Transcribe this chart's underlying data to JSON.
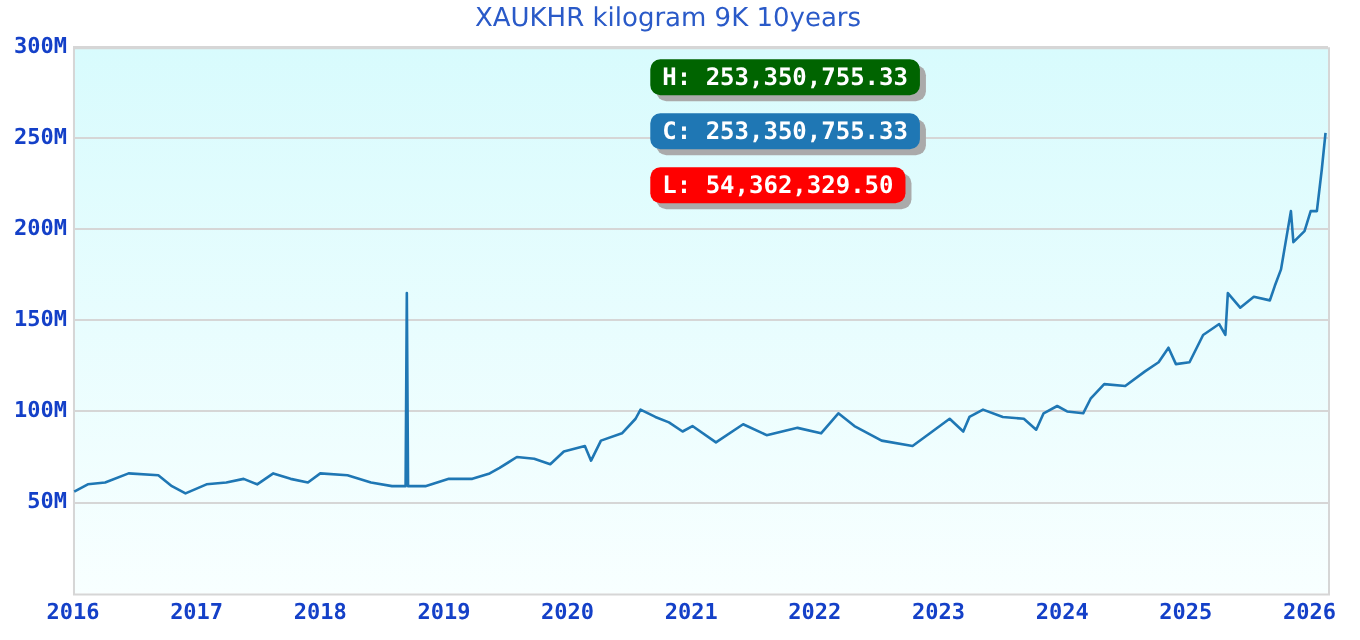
{
  "chart_data": {
    "type": "line",
    "title": "XAUKHR kilogram 9K 10years",
    "annotations": [
      "H: 253,350,755.33",
      "C: 253,350,755.33",
      "L: 54,362,329.50"
    ],
    "xlim": [
      2016,
      2026.15
    ],
    "xticks": [
      2016,
      2017,
      2018,
      2019,
      2020,
      2021,
      2022,
      2023,
      2024,
      2025,
      2026
    ],
    "ylim": [
      0,
      300
    ],
    "yticks": [
      {
        "value": 50,
        "label": "50M"
      },
      {
        "value": 100,
        "label": "100M"
      },
      {
        "value": 150,
        "label": "150M"
      },
      {
        "value": 200,
        "label": "200M"
      },
      {
        "value": 250,
        "label": "250M"
      },
      {
        "value": 300,
        "label": "300M"
      }
    ],
    "grid": "y",
    "legend": false,
    "marker": "none",
    "line_style": "solid",
    "series": [
      {
        "color": "#1f77b4",
        "x": [
          2016.01,
          2016.12,
          2016.26,
          2016.45,
          2016.69,
          2016.8,
          2016.91,
          2017.08,
          2017.24,
          2017.38,
          2017.49,
          2017.62,
          2017.76,
          2017.9,
          2018,
          2018.22,
          2018.41,
          2018.58,
          2018.69,
          2018.7,
          2018.71,
          2018.85,
          2019.04,
          2019.23,
          2019.37,
          2019.45,
          2019.59,
          2019.73,
          2019.86,
          2019.97,
          2020.14,
          2020.19,
          2020.27,
          2020.44,
          2020.55,
          2020.59,
          2020.71,
          2020.82,
          2020.93,
          2021.01,
          2021.2,
          2021.42,
          2021.61,
          2021.86,
          2022.05,
          2022.19,
          2022.32,
          2022.54,
          2022.79,
          2022.95,
          2023.09,
          2023.2,
          2023.25,
          2023.36,
          2023.52,
          2023.69,
          2023.79,
          2023.85,
          2023.96,
          2024.04,
          2024.17,
          2024.23,
          2024.34,
          2024.51,
          2024.67,
          2024.78,
          2024.86,
          2024.92,
          2025.03,
          2025.14,
          2025.27,
          2025.32,
          2025.34,
          2025.44,
          2025.55,
          2025.68,
          2025.72,
          2025.77,
          2025.85,
          2025.87,
          2025.96,
          2026.01,
          2026.06,
          2026.1,
          2026.13
        ],
        "values": [
          56,
          60,
          61,
          66,
          65,
          59,
          55,
          60,
          61,
          63,
          60,
          66,
          63,
          61,
          66,
          65,
          61,
          59,
          59,
          165,
          59,
          59,
          63,
          63,
          66,
          69,
          75,
          74,
          71,
          78,
          81,
          73,
          84,
          88,
          96,
          101,
          97,
          94,
          89,
          92,
          83,
          93,
          87,
          91,
          88,
          99,
          92,
          84,
          81,
          89,
          96,
          89,
          97,
          101,
          97,
          96,
          90,
          99,
          103,
          100,
          99,
          107,
          115,
          114,
          122,
          127,
          135,
          126,
          127,
          142,
          148,
          142,
          165,
          157,
          163,
          161,
          169,
          178,
          210,
          193,
          199,
          210,
          210,
          233,
          253
        ]
      }
    ]
  }
}
